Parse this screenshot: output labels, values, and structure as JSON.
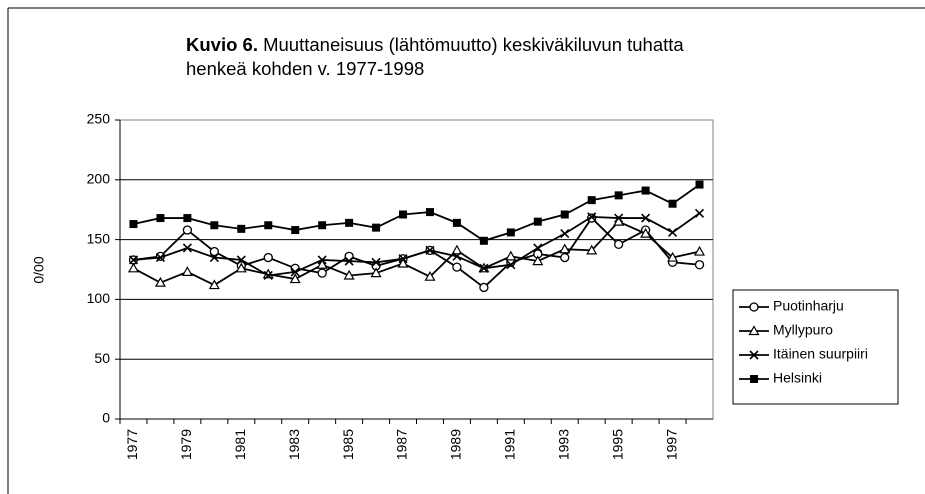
{
  "chart_data": {
    "type": "line",
    "figure_label": "Kuvio 6.",
    "title": "Muuttaneisuus (lähtömuutto) keskiväkiluvun tuhatta henkeä kohden v. 1977-1998",
    "y_label": "0/00",
    "categories": [
      "1977",
      null,
      "1979",
      null,
      "1981",
      null,
      "1983",
      null,
      "1985",
      null,
      "1987",
      null,
      "1989",
      null,
      "1991",
      null,
      "1993",
      null,
      "1995",
      null,
      "1997",
      null
    ],
    "ylim": [
      0,
      250
    ],
    "yticks": [
      0,
      50,
      100,
      150,
      200,
      250
    ],
    "grid": true,
    "legend": "right",
    "series": [
      {
        "name": "Puotinharju",
        "color": "#000000",
        "marker": "circle",
        "values": [
          133,
          136,
          158,
          140,
          128,
          135,
          126,
          122,
          136,
          128,
          134,
          141,
          127,
          110,
          131,
          138,
          135,
          168,
          146,
          158,
          131,
          129
        ]
      },
      {
        "name": "Myllypuro",
        "color": "#000000",
        "marker": "triangle",
        "values": [
          126,
          114,
          123,
          112,
          126,
          121,
          117,
          129,
          120,
          122,
          130,
          119,
          141,
          126,
          136,
          132,
          142,
          141,
          165,
          155,
          135,
          140
        ]
      },
      {
        "name": "Itäinen suurpiiri",
        "color": "#000000",
        "marker": "x",
        "values": [
          133,
          135,
          143,
          135,
          133,
          120,
          123,
          133,
          132,
          131,
          134,
          141,
          136,
          126,
          129,
          143,
          155,
          169,
          168,
          168,
          156,
          172
        ]
      },
      {
        "name": "Helsinki",
        "color": "#000000",
        "marker": "square",
        "values": [
          163,
          168,
          168,
          162,
          159,
          162,
          158,
          162,
          164,
          160,
          171,
          173,
          164,
          149,
          156,
          165,
          171,
          183,
          187,
          191,
          180,
          196
        ]
      }
    ]
  }
}
